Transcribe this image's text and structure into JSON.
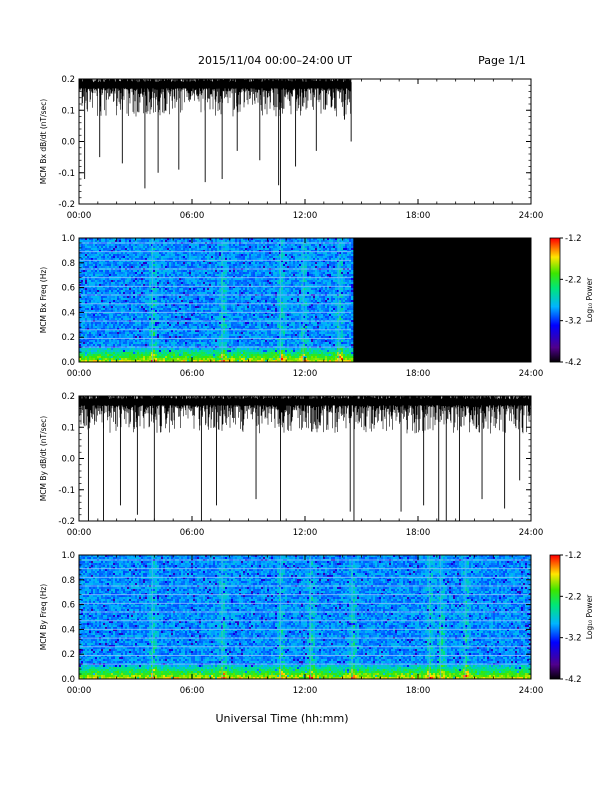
{
  "header": {
    "title": "2015/11/04  00:00–24:00 UT",
    "page": "Page 1/1"
  },
  "xaxis": {
    "label": "Universal Time (hh:mm)",
    "ticks": [
      "00:00",
      "06:00",
      "12:00",
      "18:00",
      "24:00"
    ],
    "range_hours": [
      0,
      24
    ]
  },
  "colors": {
    "trace": "#000000",
    "no_data": "#000000"
  },
  "chart_data": [
    {
      "type": "line",
      "ylabel": "MCM Bx dB/dt (nT/sec)",
      "ylim": [
        -0.2,
        0.2
      ],
      "yticks": [
        "-0.2",
        "-0.1",
        "0.0",
        "0.1",
        "0.2"
      ],
      "data_end_hour": 14.45,
      "baseline": 0.19,
      "spikes": [
        {
          "x": 0.3,
          "y": -0.12
        },
        {
          "x": 1.1,
          "y": -0.05
        },
        {
          "x": 2.3,
          "y": -0.07
        },
        {
          "x": 3.5,
          "y": -0.15
        },
        {
          "x": 4.2,
          "y": -0.1
        },
        {
          "x": 5.3,
          "y": -0.09
        },
        {
          "x": 6.7,
          "y": -0.13
        },
        {
          "x": 7.6,
          "y": -0.12
        },
        {
          "x": 8.4,
          "y": -0.03
        },
        {
          "x": 9.6,
          "y": -0.06
        },
        {
          "x": 10.6,
          "y": -0.14
        },
        {
          "x": 10.7,
          "y": -0.21
        },
        {
          "x": 11.5,
          "y": -0.08
        },
        {
          "x": 12.6,
          "y": -0.03
        },
        {
          "x": 14.1,
          "y": 0.07
        },
        {
          "x": 14.45,
          "y": 0.0
        }
      ]
    },
    {
      "type": "heatmap",
      "ylabel": "MCM Bx Freq (Hz)",
      "ylim": [
        0,
        1.0
      ],
      "yticks": [
        "0.0",
        "0.2",
        "0.4",
        "0.6",
        "0.8",
        "1.0"
      ],
      "colorbar": {
        "label": "Log₁₀ Power",
        "ticks": [
          "-1.2",
          "-2.2",
          "-3.2",
          "-4.2"
        ],
        "range": [
          -4.2,
          -1.2
        ]
      },
      "data_end_hour": 14.45,
      "harmonic_lines_hz": [
        0.12,
        0.19,
        0.26,
        0.33,
        0.4,
        0.47,
        0.54,
        0.61,
        0.68,
        0.75,
        0.82,
        0.89,
        0.96
      ],
      "bursts_hours": [
        3.9,
        7.6,
        10.7,
        11.9,
        13.8
      ]
    },
    {
      "type": "line",
      "ylabel": "MCM By dB/dt (nT/sec)",
      "ylim": [
        -0.2,
        0.2
      ],
      "yticks": [
        "-0.2",
        "-0.1",
        "0.0",
        "0.1",
        "0.2"
      ],
      "data_end_hour": 24,
      "baseline": 0.19,
      "spikes": [
        {
          "x": 0.5,
          "y": -0.2
        },
        {
          "x": 1.3,
          "y": -0.2
        },
        {
          "x": 2.2,
          "y": -0.15
        },
        {
          "x": 3.1,
          "y": -0.18
        },
        {
          "x": 4.0,
          "y": -0.2
        },
        {
          "x": 6.5,
          "y": -0.2
        },
        {
          "x": 7.3,
          "y": -0.15
        },
        {
          "x": 9.4,
          "y": -0.13
        },
        {
          "x": 10.7,
          "y": -0.2
        },
        {
          "x": 14.4,
          "y": -0.17
        },
        {
          "x": 14.6,
          "y": -0.2
        },
        {
          "x": 17.1,
          "y": -0.17
        },
        {
          "x": 18.3,
          "y": -0.15
        },
        {
          "x": 19.1,
          "y": -0.2
        },
        {
          "x": 19.5,
          "y": -0.2
        },
        {
          "x": 20.2,
          "y": -0.2
        },
        {
          "x": 21.4,
          "y": -0.13
        },
        {
          "x": 22.6,
          "y": -0.16
        },
        {
          "x": 23.4,
          "y": -0.07
        }
      ]
    },
    {
      "type": "heatmap",
      "ylabel": "MCM By Freq (Hz)",
      "ylim": [
        0,
        1.0
      ],
      "yticks": [
        "0.0",
        "0.2",
        "0.4",
        "0.6",
        "0.8",
        "1.0"
      ],
      "colorbar": {
        "label": "Log₁₀ Power",
        "ticks": [
          "-1.2",
          "-2.2",
          "-3.2",
          "-4.2"
        ],
        "range": [
          -4.2,
          -1.2
        ]
      },
      "data_end_hour": 24,
      "harmonic_lines_hz": [
        0.12,
        0.19,
        0.26,
        0.33,
        0.4,
        0.47,
        0.54,
        0.61,
        0.68,
        0.75,
        0.82,
        0.89,
        0.96
      ],
      "bursts_hours": [
        3.9,
        7.6,
        10.7,
        12.3,
        14.5,
        18.6,
        19.2,
        20.5
      ]
    }
  ]
}
